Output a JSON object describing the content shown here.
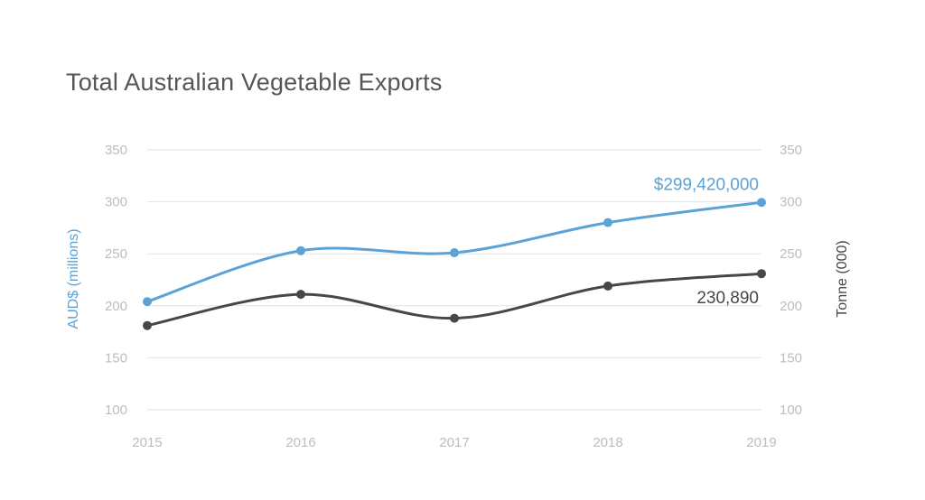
{
  "chart_data": {
    "type": "line",
    "title": "Total Australian Vegetable Exports",
    "x": [
      "2015",
      "2016",
      "2017",
      "2018",
      "2019"
    ],
    "ylabel_left": "AUD$ (millions)",
    "ylabel_right": "Tonne (000)",
    "ylim": [
      100,
      350
    ],
    "yticks": [
      350,
      300,
      250,
      200,
      150,
      100
    ],
    "grid": true,
    "series": [
      {
        "axis": "left",
        "color": "#5ba3d6",
        "values": [
          204,
          253,
          251,
          280,
          299.42
        ]
      },
      {
        "axis": "right",
        "color": "#474747",
        "values": [
          181,
          211,
          188,
          219,
          230.89
        ]
      }
    ],
    "annotations": [
      {
        "series": 0,
        "index": 4,
        "text": "$299,420,000",
        "color": "#5ba3d6"
      },
      {
        "series": 1,
        "index": 4,
        "text": "230,890",
        "color": "#474747"
      }
    ]
  }
}
